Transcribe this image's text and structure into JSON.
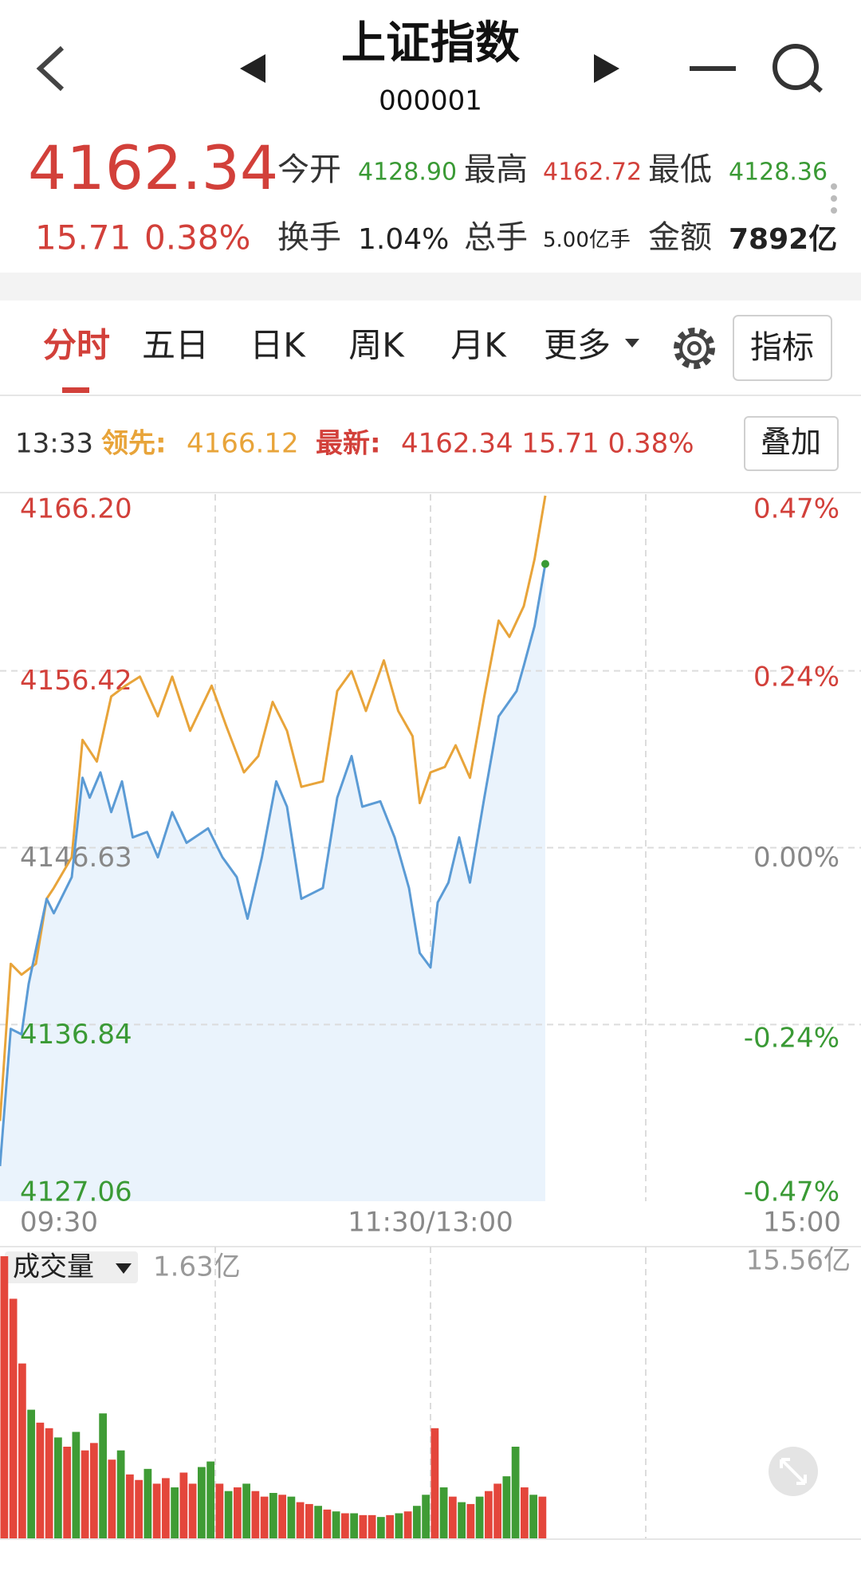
{
  "header": {
    "title": "上证指数",
    "code": "000001"
  },
  "quote": {
    "price": "4162.34",
    "change": "15.71",
    "change_pct": "0.38%",
    "stats": [
      {
        "label": "今开",
        "value": "4128.90",
        "color": "#3a9a35"
      },
      {
        "label": "最高",
        "value": "4162.72",
        "color": "#d2403a"
      },
      {
        "label": "最低",
        "value": "4128.36",
        "color": "#3a9a35"
      },
      {
        "label": "换手",
        "value": "1.04%",
        "color": "#222222"
      },
      {
        "label": "总手",
        "value": "5.00亿手",
        "color": "#222222"
      },
      {
        "label": "金额",
        "value": "7892亿",
        "color": "#222222"
      }
    ]
  },
  "tabs": [
    "分时",
    "五日",
    "日K",
    "周K",
    "月K",
    "更多"
  ],
  "indicator_button": "指标",
  "info_bar": {
    "time": "13:33",
    "lead_label": "领先:",
    "lead_value": "4166.12",
    "latest_label": "最新:",
    "latest_value": "4162.34 15.71 0.38%"
  },
  "overlay_button": "叠加",
  "volume_label": "成交量",
  "latest_volume": "1.63亿",
  "chart_data": [
    {
      "type": "line",
      "xlim": [
        0,
        240
      ],
      "xticks": [
        {
          "value": 0,
          "label": "09:30"
        },
        {
          "value": 120,
          "label": "11:30/13:00"
        },
        {
          "value": 240,
          "label": "15:00"
        }
      ],
      "vgrid": [
        60,
        120,
        180
      ],
      "ylim": [
        4127.06,
        4166.2
      ],
      "yticks": [
        {
          "value": 4166.2,
          "label": "4166.20"
        },
        4156.42,
        4146.63,
        4136.84,
        4127.06
      ],
      "y2lim": [
        -0.47,
        0.47
      ],
      "y2ticks": [
        {
          "value": 0.47,
          "label": "0.47%"
        },
        {
          "value": 0.24,
          "label": "0.24%"
        },
        {
          "value": 0,
          "label": "0.00%"
        },
        {
          "value": -0.24,
          "label": "-0.24%"
        },
        {
          "value": -0.47,
          "label": "-0.47%"
        }
      ],
      "grid": true,
      "series": [
        {
          "color": "#e8a43a",
          "x": [
            0,
            3,
            6,
            10,
            13,
            15,
            20,
            23,
            27,
            31,
            35,
            39,
            44,
            48,
            53,
            59,
            63,
            68,
            72,
            76,
            80,
            84,
            90,
            94,
            98,
            102,
            107,
            111,
            115,
            117,
            120,
            124,
            127,
            131,
            135,
            139,
            142,
            146,
            149,
            152
          ],
          "values": [
            4131.5,
            4140.2,
            4139.6,
            4140.2,
            4143.8,
            4144.4,
            4146.1,
            4152.6,
            4151.4,
            4155.0,
            4155.6,
            4156.1,
            4153.9,
            4156.1,
            4153.1,
            4155.6,
            4153.4,
            4150.8,
            4151.7,
            4154.7,
            4153.1,
            4150.0,
            4150.3,
            4155.3,
            4156.4,
            4154.2,
            4157.0,
            4154.2,
            4152.8,
            4149.1,
            4150.8,
            4151.1,
            4152.3,
            4150.5,
            4155.0,
            4159.2,
            4158.3,
            4160.0,
            4162.6,
            4166.12
          ]
        },
        {
          "color": "#5b9bd5",
          "fill": "#eaf3fc",
          "x": [
            0,
            3,
            6,
            8,
            13,
            15,
            20,
            23,
            25,
            28,
            31,
            34,
            37,
            41,
            44,
            48,
            52,
            58,
            62,
            66,
            69,
            73,
            77,
            80,
            84,
            90,
            94,
            98,
            101,
            106,
            110,
            114,
            117,
            120,
            122,
            125,
            128,
            131,
            135,
            139,
            144,
            146,
            149,
            152
          ],
          "values": [
            4129.0,
            4136.6,
            4136.3,
            4139.1,
            4143.8,
            4143.0,
            4145.0,
            4150.5,
            4149.4,
            4150.8,
            4148.6,
            4150.3,
            4147.2,
            4147.5,
            4146.1,
            4148.6,
            4146.9,
            4147.7,
            4146.1,
            4145.0,
            4142.7,
            4146.1,
            4150.3,
            4148.9,
            4143.8,
            4144.4,
            4149.4,
            4151.7,
            4148.9,
            4149.2,
            4147.2,
            4144.4,
            4140.8,
            4140.0,
            4143.6,
            4144.7,
            4147.2,
            4144.7,
            4149.4,
            4153.9,
            4155.3,
            4156.7,
            4158.9,
            4162.34
          ]
        }
      ]
    },
    {
      "type": "bar",
      "xlim": [
        0,
        240
      ],
      "vgrid": [
        60,
        120,
        180
      ],
      "ylim": [
        0,
        15.56
      ],
      "yticks": [
        {
          "value": 15.56,
          "label": "15.56亿"
        }
      ],
      "x": [
        0,
        2.5,
        5,
        7.5,
        10,
        12.5,
        15,
        17.5,
        20,
        22.5,
        25,
        27.5,
        30,
        32.5,
        35,
        37.5,
        40,
        42.5,
        45,
        47.5,
        50,
        52.5,
        55,
        57.5,
        60,
        62.5,
        65,
        67.5,
        70,
        72.5,
        75,
        77.5,
        80,
        82.5,
        85,
        87.5,
        90,
        92.5,
        95,
        97.5,
        100,
        102.5,
        105,
        107.5,
        110,
        112.5,
        115,
        117.5,
        120,
        122.5,
        125,
        127.5,
        130,
        132.5,
        135,
        137.5,
        140,
        142.5,
        145,
        147.5,
        150
      ],
      "values": [
        15.3,
        13.0,
        9.5,
        7.0,
        6.3,
        6.0,
        5.5,
        5.0,
        5.8,
        4.8,
        5.2,
        6.8,
        4.3,
        4.8,
        3.5,
        3.2,
        3.8,
        3.0,
        3.3,
        2.8,
        3.6,
        3.0,
        3.9,
        4.2,
        3.0,
        2.6,
        2.8,
        3.0,
        2.6,
        2.3,
        2.5,
        2.4,
        2.3,
        2.0,
        1.9,
        1.8,
        1.6,
        1.5,
        1.4,
        1.4,
        1.3,
        1.3,
        1.2,
        1.3,
        1.4,
        1.5,
        1.8,
        2.4,
        6.0,
        2.8,
        2.3,
        2.0,
        1.9,
        2.3,
        2.6,
        3.0,
        3.4,
        5.0,
        2.8,
        2.4,
        2.3
      ],
      "colors": [
        "#e4463b",
        "#e4463b",
        "#e4463b",
        "#3f9c35",
        "#e4463b",
        "#e4463b",
        "#3f9c35",
        "#e4463b",
        "#3f9c35",
        "#e4463b",
        "#e4463b",
        "#3f9c35",
        "#e4463b",
        "#3f9c35",
        "#e4463b",
        "#e4463b",
        "#3f9c35",
        "#e4463b",
        "#e4463b",
        "#3f9c35",
        "#e4463b",
        "#e4463b",
        "#3f9c35",
        "#3f9c35",
        "#e4463b",
        "#3f9c35",
        "#e4463b",
        "#3f9c35",
        "#e4463b",
        "#e4463b",
        "#3f9c35",
        "#e4463b",
        "#3f9c35",
        "#e4463b",
        "#e4463b",
        "#3f9c35",
        "#e4463b",
        "#3f9c35",
        "#e4463b",
        "#3f9c35",
        "#e4463b",
        "#e4463b",
        "#3f9c35",
        "#e4463b",
        "#3f9c35",
        "#e4463b",
        "#3f9c35",
        "#3f9c35",
        "#e4463b",
        "#3f9c35",
        "#e4463b",
        "#3f9c35",
        "#e4463b",
        "#3f9c35",
        "#e4463b",
        "#e4463b",
        "#3f9c35",
        "#3f9c35",
        "#e4463b",
        "#3f9c35",
        "#e4463b"
      ]
    }
  ]
}
